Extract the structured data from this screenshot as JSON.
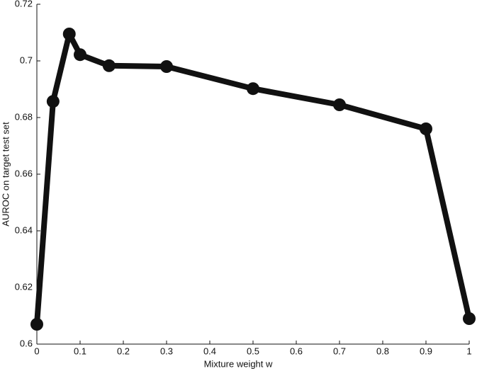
{
  "chart_data": {
    "type": "line",
    "xlabel": "Mixture weight w",
    "ylabel": "AUROC on target test set",
    "x": [
      0,
      0.0375,
      0.075,
      0.1,
      0.167,
      0.3,
      0.5,
      0.7,
      0.9,
      1
    ],
    "series": [
      {
        "color": "#111111",
        "values": [
          0.607,
          0.6857,
          0.7095,
          0.7022,
          0.6983,
          0.698,
          0.6902,
          0.6845,
          0.676,
          0.609
        ]
      }
    ],
    "xlim": [
      0,
      1
    ],
    "xticks": [
      0,
      0.1,
      0.2,
      0.3,
      0.4,
      0.5,
      0.6,
      0.7,
      0.8,
      0.9,
      1
    ],
    "ylim": [
      0.6,
      0.72
    ],
    "yticks": [
      0.6,
      0.62,
      0.64,
      0.66,
      0.68,
      0.7,
      0.72
    ],
    "grid": false
  }
}
